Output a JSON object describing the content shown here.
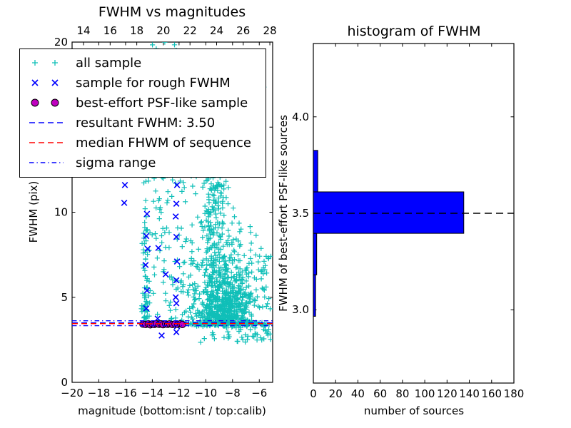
{
  "colors": {
    "cyan": "#0fbfb8",
    "blue": "#0000ff",
    "red": "#ff0000",
    "magenta": "#bf00bf",
    "black": "#000000",
    "axis": "#000000",
    "background": "#ffffff"
  },
  "legend": {
    "items": [
      {
        "label": "all sample",
        "marker": "plus",
        "color": "cyan"
      },
      {
        "label": "sample for rough FWHM",
        "marker": "cross",
        "color": "blue"
      },
      {
        "label": "best-effort PSF-like sample",
        "marker": "circle",
        "color": "magenta"
      },
      {
        "label": "resultant FWHM: 3.50",
        "marker": "dashed",
        "color": "blue"
      },
      {
        "label": "median FHWM of sequence",
        "marker": "dashed",
        "color": "red"
      },
      {
        "label": "sigma range",
        "marker": "dashdot",
        "color": "blue"
      }
    ]
  },
  "chart_data": [
    {
      "type": "scatter",
      "title": "FWHM vs magnitudes",
      "xlabel": "magnitude (bottom:isnt / top:calib)",
      "ylabel": "FWHM (pix)",
      "xlim": [
        -20,
        -5
      ],
      "ylim": [
        0,
        20
      ],
      "x_ticks": [
        -20,
        -18,
        -16,
        -14,
        -12,
        -10,
        -8,
        -6
      ],
      "y_ticks": [
        0,
        5,
        10,
        15,
        20
      ],
      "top_axis": {
        "ticks": [
          14,
          16,
          18,
          20,
          22,
          24,
          26,
          28
        ],
        "range": [
          13.14,
          28.21
        ]
      },
      "grid": false,
      "legend_position": "upper left",
      "series": [
        {
          "name": "all sample",
          "marker": "plus",
          "color": "cyan",
          "clusters": [
            {
              "count": 700,
              "x": {
                "type": "normal",
                "mu": -8.6,
                "sd": 1.0,
                "clip": [
                  -11.3,
                  -5.05
                ]
              },
              "y": {
                "type": "exp",
                "base": 3.3,
                "mean": 1.7,
                "clip": [
                  3.3,
                  9.8
                ]
              }
            },
            {
              "count": 170,
              "x": {
                "type": "normal",
                "mu": -9.35,
                "sd": 0.55,
                "clip": [
                  -10.8,
                  -7.8
                ]
              },
              "y": {
                "type": "uniform",
                "min": 5.5,
                "max": 12.3
              }
            },
            {
              "count": 65,
              "x": {
                "type": "normal",
                "mu": -14.5,
                "sd": 0.12,
                "clip": [
                  -14.9,
                  -14.1
                ]
              },
              "y": {
                "type": "exp",
                "base": 3.4,
                "mean": 2.4,
                "clip": [
                  3.4,
                  12.3
                ]
              }
            },
            {
              "count": 120,
              "x": {
                "type": "uniform",
                "min": -14.3,
                "max": -10.6
              },
              "y": {
                "type": "uniform",
                "min": 3.4,
                "max": 12.35
              }
            },
            {
              "count": 15,
              "x": {
                "type": "uniform",
                "min": -13.8,
                "max": -5.4
              },
              "y": {
                "type": "uniform",
                "min": 12.4,
                "max": 19.2
              }
            },
            {
              "count": 5,
              "x": {
                "type": "uniform",
                "min": -14.0,
                "max": -12.2
              },
              "y": {
                "type": "uniform",
                "min": 19.4,
                "max": 20.0
              }
            },
            {
              "count": 90,
              "x": {
                "type": "uniform",
                "min": -12.05,
                "max": -5.05
              },
              "y": {
                "type": "normal",
                "mu": 3.42,
                "sd": 0.07,
                "clip": [
                  3.2,
                  3.65
                ]
              }
            },
            {
              "count": 45,
              "x": {
                "type": "uniform",
                "min": -10.6,
                "max": -5.1
              },
              "y": {
                "type": "uniform",
                "min": 2.35,
                "max": 3.3
              }
            },
            {
              "count": 60,
              "x": {
                "type": "uniform",
                "min": -7.6,
                "max": -5.05
              },
              "y": {
                "type": "uniform",
                "min": 4.2,
                "max": 7.5
              }
            }
          ]
        },
        {
          "name": "sample for rough FWHM",
          "marker": "cross",
          "color": "blue",
          "points": [
            [
              -16.05,
              11.6
            ],
            [
              -16.1,
              10.55
            ],
            [
              -14.4,
              9.9
            ],
            [
              -14.45,
              8.6
            ],
            [
              -14.35,
              7.85
            ],
            [
              -14.5,
              6.9
            ],
            [
              -14.4,
              5.4
            ],
            [
              -14.45,
              4.35
            ],
            [
              -13.55,
              7.9
            ],
            [
              -13.0,
              6.35
            ],
            [
              -13.6,
              3.75
            ],
            [
              -12.15,
              11.6
            ],
            [
              -12.2,
              10.5
            ],
            [
              -12.25,
              9.75
            ],
            [
              -12.2,
              8.55
            ],
            [
              -12.15,
              7.1
            ],
            [
              -12.2,
              6.0
            ],
            [
              -12.25,
              5.0
            ],
            [
              -12.2,
              4.65
            ],
            [
              -12.15,
              3.3
            ],
            [
              -13.3,
              2.75
            ],
            [
              -12.2,
              2.95
            ],
            [
              -14.0,
              3.45
            ],
            [
              -12.6,
              3.4
            ],
            [
              -11.9,
              3.42
            ],
            [
              -13.15,
              3.4
            ]
          ]
        },
        {
          "name": "best-effort PSF-like sample",
          "marker": "circle",
          "color": "magenta",
          "points": [
            [
              -14.7,
              3.42
            ],
            [
              -14.5,
              3.4
            ],
            [
              -14.3,
              3.44
            ],
            [
              -14.15,
              3.38
            ],
            [
              -14.0,
              3.43
            ],
            [
              -13.85,
              3.4
            ],
            [
              -13.7,
              3.45
            ],
            [
              -13.5,
              3.41
            ],
            [
              -13.35,
              3.44
            ],
            [
              -13.2,
              3.39
            ],
            [
              -13.0,
              3.43
            ],
            [
              -12.85,
              3.41
            ],
            [
              -12.7,
              3.44
            ],
            [
              -12.5,
              3.4
            ],
            [
              -12.3,
              3.43
            ],
            [
              -12.1,
              3.41
            ],
            [
              -11.9,
              3.44
            ],
            [
              -11.75,
              3.4
            ]
          ]
        }
      ],
      "lines": [
        {
          "name": "resultant FWHM: 3.50",
          "y": 3.5,
          "color": "blue",
          "style": "dashed"
        },
        {
          "name": "median FHWM of sequence",
          "y": 3.45,
          "color": "red",
          "style": "dashed"
        },
        {
          "name": "sigma range upper",
          "y": 3.62,
          "color": "blue",
          "style": "dashdot"
        },
        {
          "name": "sigma range lower",
          "y": 3.33,
          "color": "blue",
          "style": "dashdot"
        }
      ]
    },
    {
      "type": "histogram",
      "orientation": "horizontal",
      "title": "histogram of FWHM",
      "xlabel": "number of sources",
      "ylabel": "FWHM of best-effort PSF-like sources",
      "xlim": [
        0,
        180
      ],
      "ylim": [
        2.62,
        4.38
      ],
      "x_ticks": [
        0,
        20,
        40,
        60,
        80,
        100,
        120,
        140,
        160,
        180
      ],
      "y_ticks": {
        "values": [
          3.0,
          3.5,
          4.0
        ],
        "labels": [
          "3.0",
          "3.5",
          "4.0"
        ]
      },
      "bin_edges": [
        2.966,
        3.181,
        3.396,
        3.611,
        3.826
      ],
      "counts": [
        2,
        3,
        135,
        4
      ],
      "bar_color": "blue",
      "marker_line": {
        "y": 3.5,
        "color": "black",
        "style": "dashed"
      },
      "grid": false
    }
  ]
}
